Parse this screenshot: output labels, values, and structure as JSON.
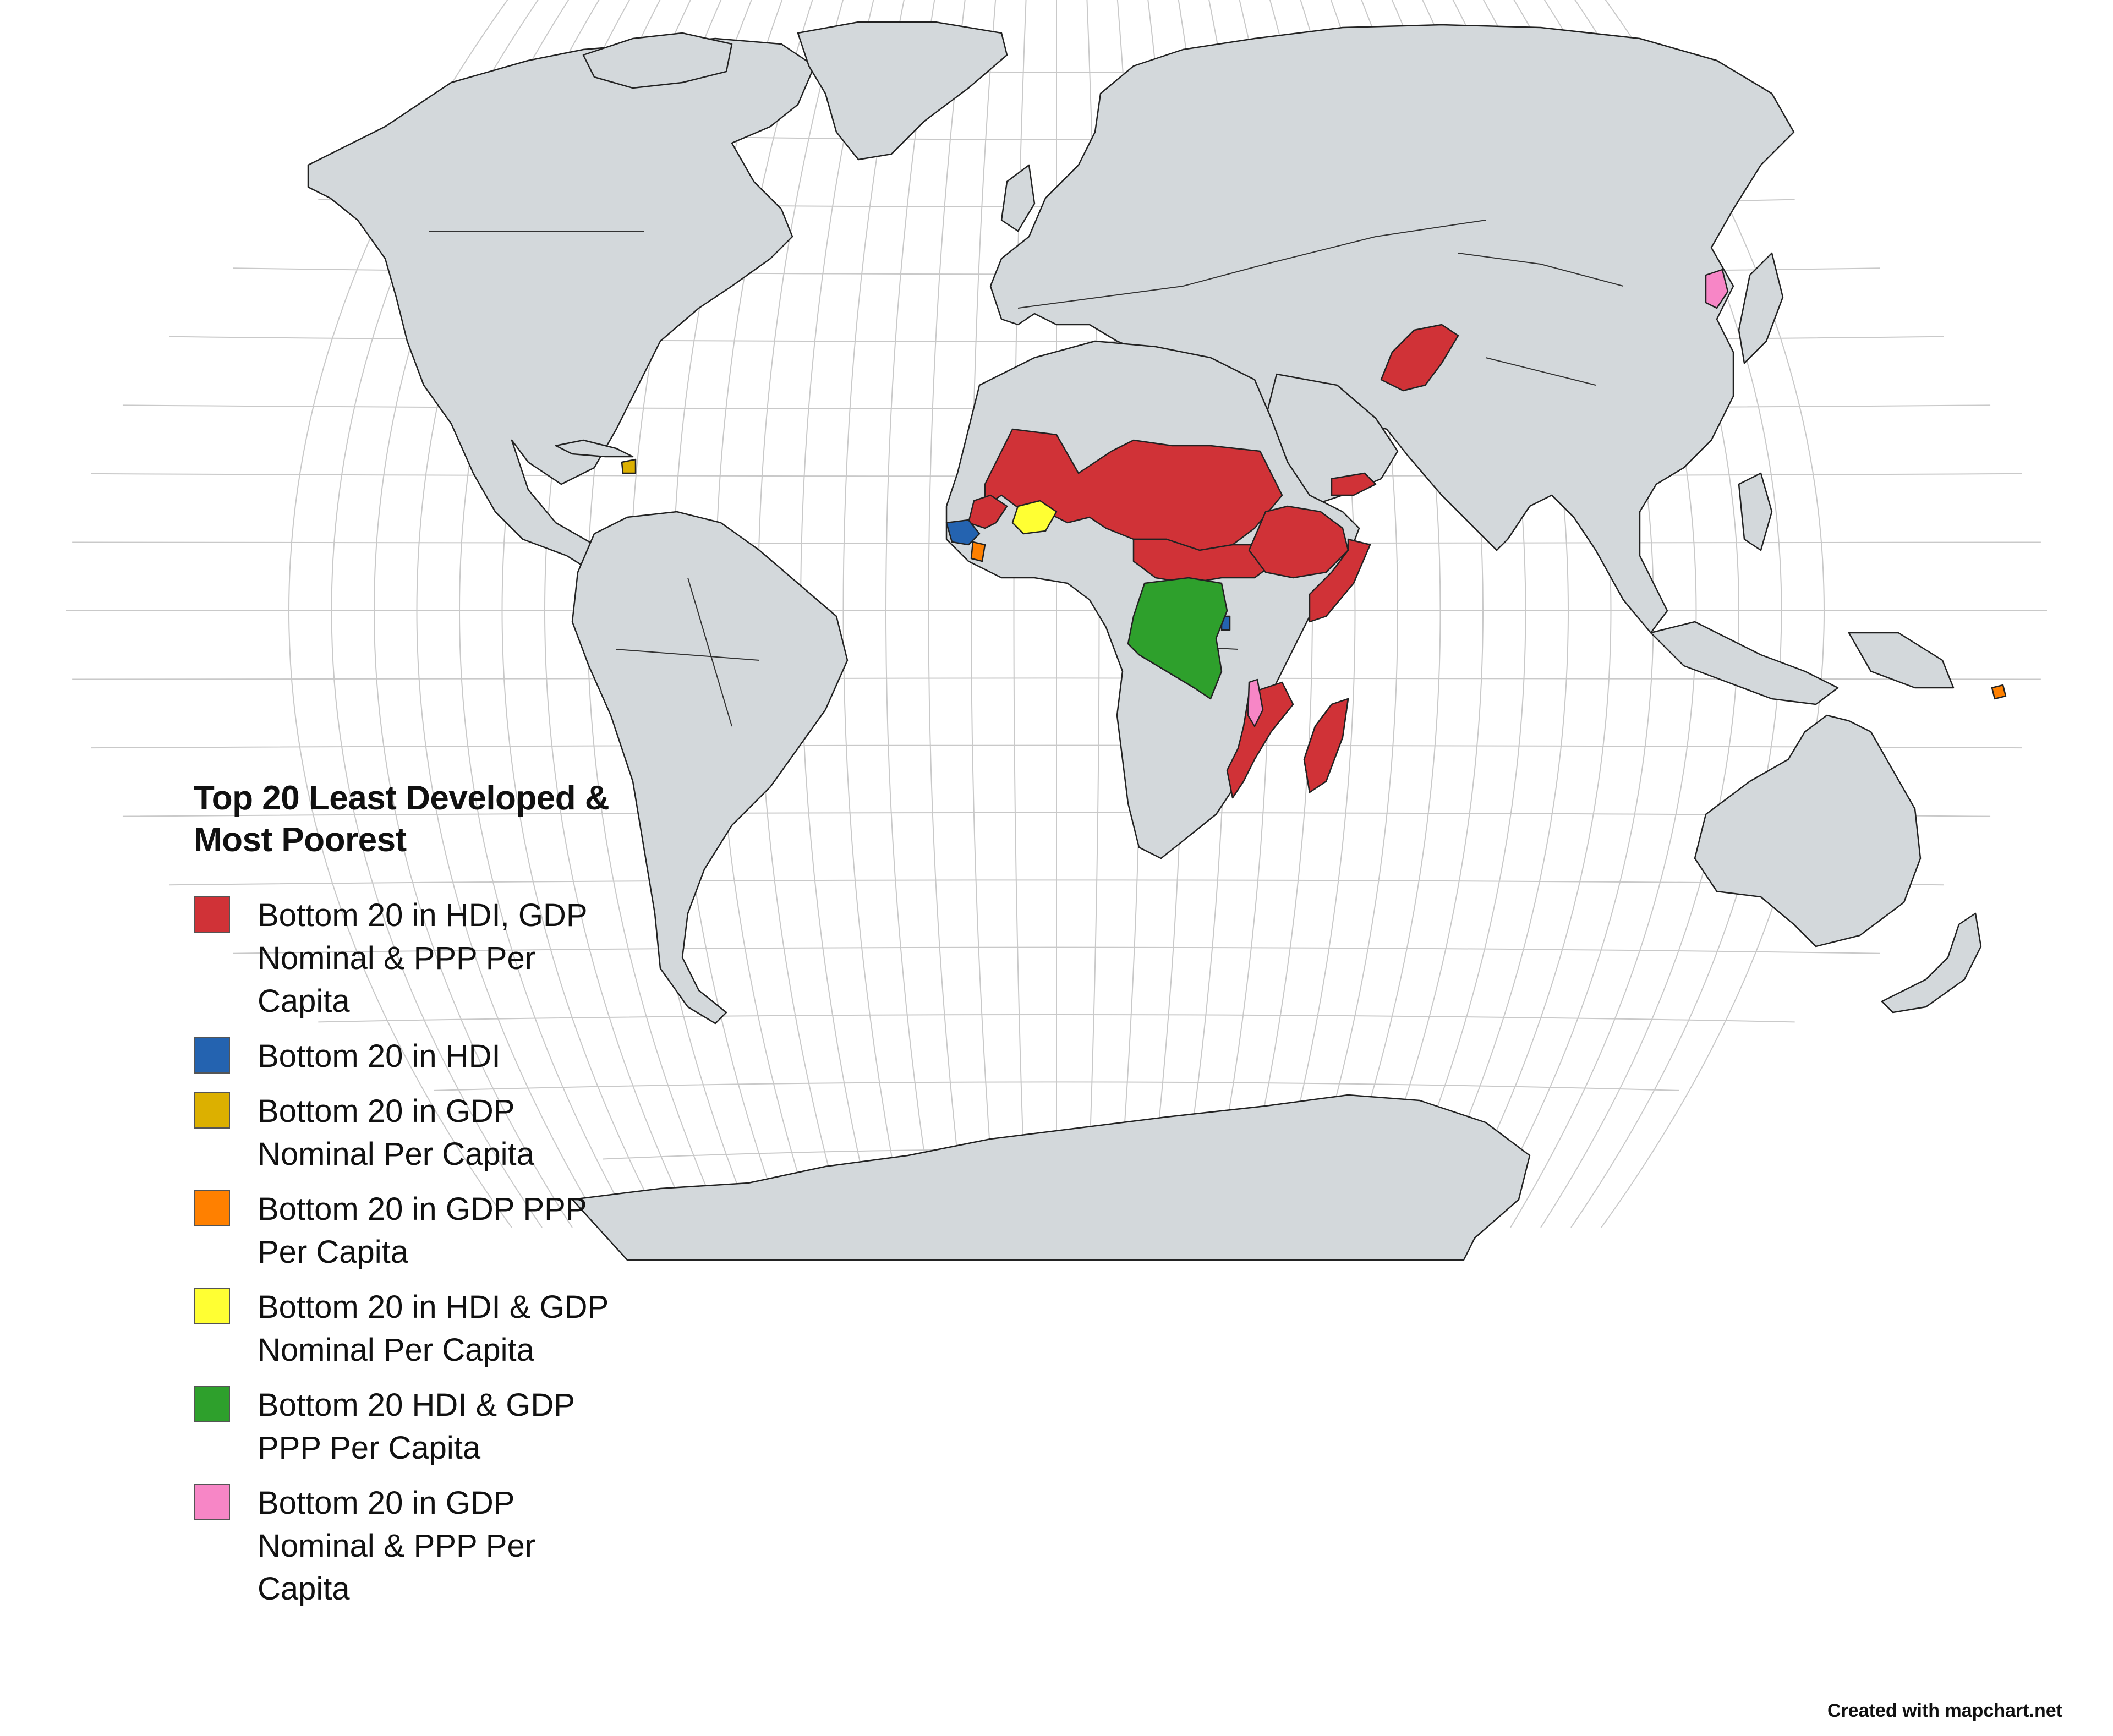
{
  "legend": {
    "title": "Top 20 Least Developed & Most Poorest",
    "items": [
      {
        "label": "Bottom 20 in HDI, GDP Nominal & PPP Per Capita",
        "color": "#d03237"
      },
      {
        "label": "Bottom 20 in HDI",
        "color": "#2463b0"
      },
      {
        "label": "Bottom 20 in GDP Nominal Per Capita",
        "color": "#dcb000"
      },
      {
        "label": "Bottom 20 in GDP PPP Per Capita",
        "color": "#ff8000"
      },
      {
        "label": "Bottom 20 in HDI & GDP Nominal Per Capita",
        "color": "#ffff33"
      },
      {
        "label": "Bottom 20 HDI & GDP PPP Per Capita",
        "color": "#2ea02c"
      },
      {
        "label": "Bottom 20 in GDP Nominal & PPP Per Capita",
        "color": "#f786c6"
      }
    ]
  },
  "credit": "Created with mapchart.net",
  "map": {
    "base_color": "#d3d8db",
    "regions": [
      {
        "name": "Sahel & Sudan belt",
        "category": 0
      },
      {
        "name": "Guinea",
        "category": 0
      },
      {
        "name": "Central Africa",
        "category": 0
      },
      {
        "name": "South Sudan",
        "category": 0
      },
      {
        "name": "Somalia",
        "category": 0
      },
      {
        "name": "Yemen",
        "category": 0
      },
      {
        "name": "Afghanistan",
        "category": 0
      },
      {
        "name": "Mozambique",
        "category": 0
      },
      {
        "name": "Madagascar",
        "category": 0
      },
      {
        "name": "Sierra Leone",
        "category": 1
      },
      {
        "name": "Ethiopia",
        "category": 1
      },
      {
        "name": "Burundi",
        "category": 2
      },
      {
        "name": "Haiti",
        "category": 3
      },
      {
        "name": "Solomon Islands",
        "category": 3
      },
      {
        "name": "Liberia",
        "category": 4
      },
      {
        "name": "Burkina Faso",
        "category": 5
      },
      {
        "name": "DR Congo",
        "category": 6
      },
      {
        "name": "Malawi",
        "category": 6
      },
      {
        "name": "North Korea",
        "category": 6
      }
    ]
  }
}
